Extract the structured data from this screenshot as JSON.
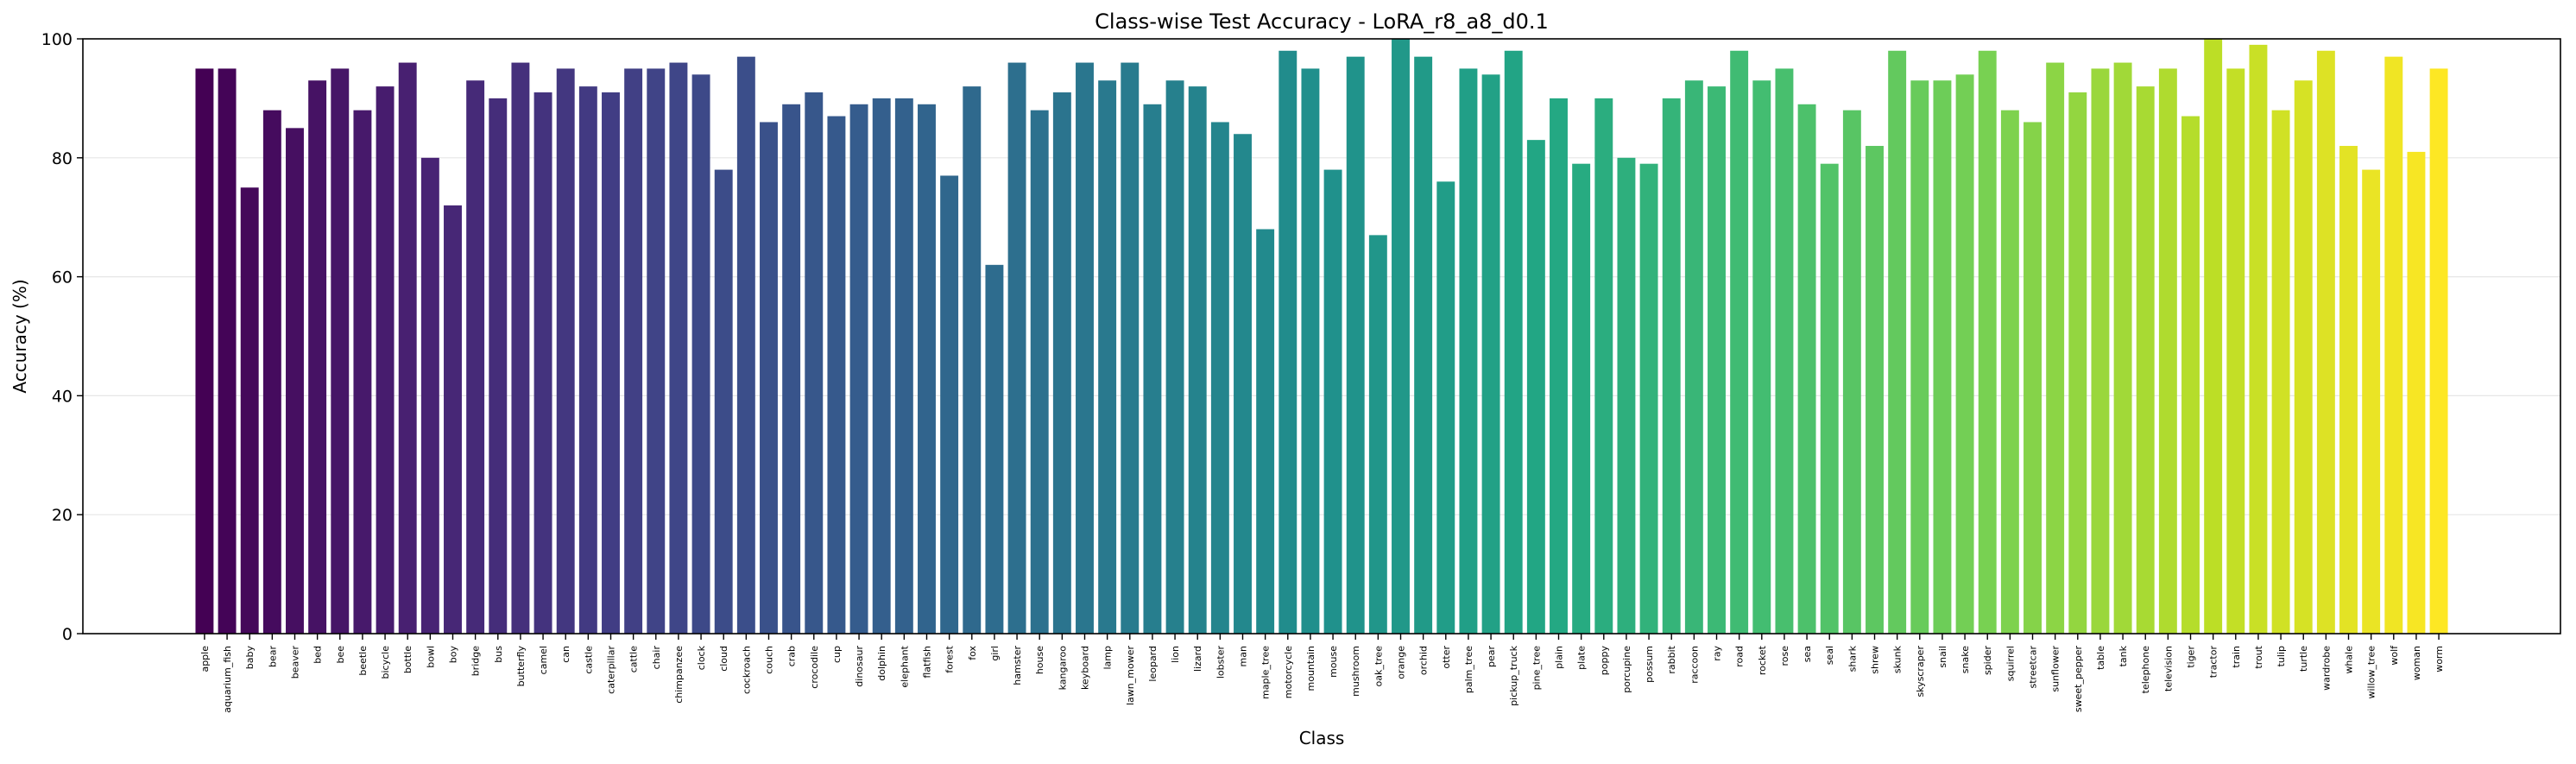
{
  "chart_data": {
    "type": "bar",
    "title": "Class-wise Test Accuracy - LoRA_r8_a8_d0.1",
    "xlabel": "Class",
    "ylabel": "Accuracy (%)",
    "ylim": [
      0,
      100
    ],
    "yticks": [
      0,
      20,
      40,
      60,
      80,
      100
    ],
    "grid": "horizontal",
    "colormap": "viridis",
    "categories": [
      "apple",
      "aquarium_fish",
      "baby",
      "bear",
      "beaver",
      "bed",
      "bee",
      "beetle",
      "bicycle",
      "bottle",
      "bowl",
      "boy",
      "bridge",
      "bus",
      "butterfly",
      "camel",
      "can",
      "castle",
      "caterpillar",
      "cattle",
      "chair",
      "chimpanzee",
      "clock",
      "cloud",
      "cockroach",
      "couch",
      "crab",
      "crocodile",
      "cup",
      "dinosaur",
      "dolphin",
      "elephant",
      "flatfish",
      "forest",
      "fox",
      "girl",
      "hamster",
      "house",
      "kangaroo",
      "keyboard",
      "lamp",
      "lawn_mower",
      "leopard",
      "lion",
      "lizard",
      "lobster",
      "man",
      "maple_tree",
      "motorcycle",
      "mountain",
      "mouse",
      "mushroom",
      "oak_tree",
      "orange",
      "orchid",
      "otter",
      "palm_tree",
      "pear",
      "pickup_truck",
      "pine_tree",
      "plain",
      "plate",
      "poppy",
      "porcupine",
      "possum",
      "rabbit",
      "raccoon",
      "ray",
      "road",
      "rocket",
      "rose",
      "sea",
      "seal",
      "shark",
      "shrew",
      "skunk",
      "skyscraper",
      "snail",
      "snake",
      "spider",
      "squirrel",
      "streetcar",
      "sunflower",
      "sweet_pepper",
      "table",
      "tank",
      "telephone",
      "television",
      "tiger",
      "tractor",
      "train",
      "trout",
      "tulip",
      "turtle",
      "wardrobe",
      "whale",
      "willow_tree",
      "wolf",
      "woman",
      "worm"
    ],
    "values": [
      95,
      95,
      75,
      88,
      85,
      93,
      95,
      88,
      92,
      96,
      80,
      72,
      93,
      90,
      96,
      91,
      95,
      92,
      91,
      95,
      95,
      96,
      94,
      78,
      97,
      86,
      89,
      91,
      87,
      89,
      90,
      90,
      89,
      77,
      92,
      62,
      96,
      88,
      91,
      96,
      93,
      96,
      89,
      93,
      92,
      86,
      84,
      68,
      98,
      95,
      78,
      97,
      67,
      100,
      97,
      76,
      95,
      94,
      98,
      83,
      90,
      79,
      90,
      80,
      79,
      90,
      93,
      92,
      98,
      93,
      95,
      89,
      79,
      88,
      82,
      98,
      93,
      93,
      94,
      98,
      88,
      86,
      96,
      91,
      95,
      96,
      92,
      95,
      87,
      100,
      95,
      99,
      88,
      93,
      98,
      82,
      78,
      97,
      81,
      95
    ]
  }
}
